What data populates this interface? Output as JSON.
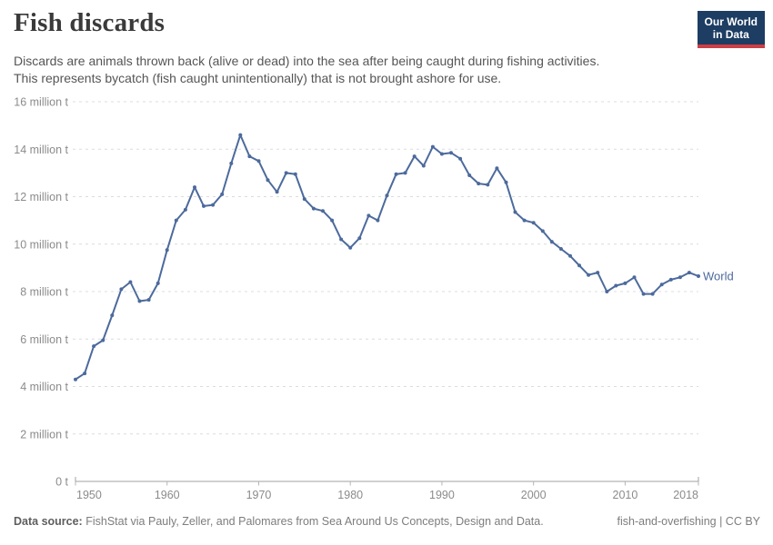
{
  "header": {
    "title": "Fish discards",
    "subtitle_line1": "Discards are animals thrown back (alive or dead) into the sea after being caught during fishing activities.",
    "subtitle_line2": "This represents bycatch (fish caught unintentionally) that is not brought ashore for use.",
    "logo_line1": "Our World",
    "logo_line2": "in Data"
  },
  "chart_data": {
    "type": "line",
    "title": "Fish discards",
    "xlabel": "",
    "ylabel": "",
    "xlim": [
      1950,
      2018
    ],
    "ylim": [
      0,
      16
    ],
    "grid": "horizontal-dashed",
    "legend": "end-of-line-label",
    "x_ticks": [
      1950,
      1960,
      1970,
      1980,
      1990,
      2000,
      2010,
      2018
    ],
    "x_tick_labels": [
      "1950",
      "1960",
      "1970",
      "1980",
      "1990",
      "2000",
      "2010",
      "2018"
    ],
    "y_ticks": [
      0,
      2,
      4,
      6,
      8,
      10,
      12,
      14,
      16
    ],
    "y_tick_labels": [
      "0 t",
      "2 million t",
      "4 million t",
      "6 million t",
      "8 million t",
      "10 million t",
      "12 million t",
      "14 million t",
      "16 million t"
    ],
    "unit": "million tonnes",
    "series": [
      {
        "name": "World",
        "color": "#4C6A9C",
        "x": [
          1950,
          1951,
          1952,
          1953,
          1954,
          1955,
          1956,
          1957,
          1958,
          1959,
          1960,
          1961,
          1962,
          1963,
          1964,
          1965,
          1966,
          1967,
          1968,
          1969,
          1970,
          1971,
          1972,
          1973,
          1974,
          1975,
          1976,
          1977,
          1978,
          1979,
          1980,
          1981,
          1982,
          1983,
          1984,
          1985,
          1986,
          1987,
          1988,
          1989,
          1990,
          1991,
          1992,
          1993,
          1994,
          1995,
          1996,
          1997,
          1998,
          1999,
          2000,
          2001,
          2002,
          2003,
          2004,
          2005,
          2006,
          2007,
          2008,
          2009,
          2010,
          2011,
          2012,
          2013,
          2014,
          2015,
          2016,
          2017,
          2018
        ],
        "values": [
          4.3,
          4.55,
          5.7,
          5.95,
          7.0,
          8.1,
          8.4,
          7.6,
          7.65,
          8.35,
          9.75,
          11.0,
          11.45,
          12.4,
          11.6,
          11.65,
          12.1,
          13.4,
          14.6,
          13.7,
          13.5,
          12.7,
          12.2,
          13.0,
          12.95,
          11.9,
          11.5,
          11.4,
          11.0,
          10.2,
          9.85,
          10.25,
          11.2,
          11.0,
          12.05,
          12.95,
          13.0,
          13.7,
          13.3,
          14.1,
          13.8,
          13.85,
          13.6,
          12.9,
          12.55,
          12.5,
          13.2,
          12.6,
          11.35,
          11.0,
          10.9,
          10.55,
          10.1,
          9.8,
          9.5,
          9.1,
          8.7,
          8.8,
          8.0,
          8.25,
          8.35,
          8.6,
          7.9,
          7.9,
          8.3,
          8.5,
          8.6,
          8.8,
          8.65
        ]
      }
    ]
  },
  "footer": {
    "datasource_label": "Data source:",
    "datasource_text": " FishStat via Pauly, Zeller, and Palomares from Sea Around Us Concepts, Design and Data.",
    "right_text": "fish-and-overfishing | CC BY"
  },
  "colors": {
    "line": "#4C6A9C",
    "grid": "#dcdcdc",
    "axis": "#a0a0a0",
    "tick": "#b5b5b5",
    "tick_text": "#8b8b8b",
    "title_text": "#3a3a3a",
    "subtitle_text": "#555555",
    "logo_bg": "#1d3d63",
    "logo_accent": "#cd3e45"
  }
}
